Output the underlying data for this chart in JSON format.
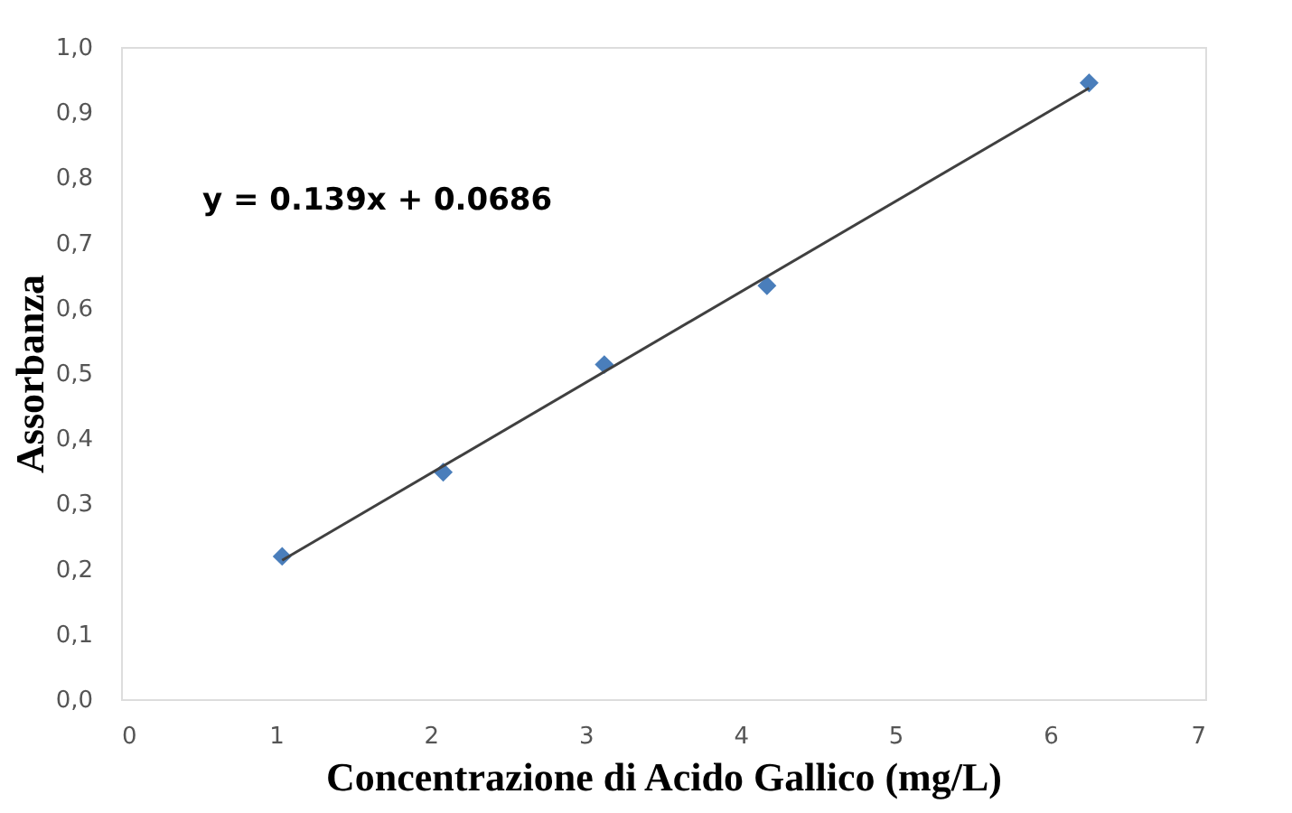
{
  "chart_data": {
    "type": "scatter",
    "xlabel": "Concentrazione di Acido Gallico (mg/L)",
    "ylabel": "Assorbanza",
    "annotations": [
      "y = 0.139x + 0.0686"
    ],
    "series": [
      {
        "color": "#4a7ebb",
        "marker": "diamond",
        "x": [
          1.04,
          2.08,
          3.12,
          4.17,
          6.25
        ],
        "values": [
          0.219,
          0.348,
          0.513,
          0.634,
          0.945
        ]
      },
      {
        "type": "line",
        "color": "#404040",
        "line_style": "solid",
        "x": [
          1.04,
          6.25
        ],
        "values": [
          0.213,
          0.937
        ]
      }
    ],
    "xlim": [
      0,
      7
    ],
    "xticks": [
      0,
      1,
      2,
      3,
      4,
      5,
      6,
      7
    ],
    "ylim": [
      0,
      1
    ],
    "yticks": [
      {
        "value": 0,
        "label": "0,0"
      },
      {
        "value": 0.1,
        "label": "0,1"
      },
      {
        "value": 0.2,
        "label": "0,2"
      },
      {
        "value": 0.3,
        "label": "0,3"
      },
      {
        "value": 0.4,
        "label": "0,4"
      },
      {
        "value": 0.5,
        "label": "0,5"
      },
      {
        "value": 0.6,
        "label": "0,6"
      },
      {
        "value": 0.7,
        "label": "0,7"
      },
      {
        "value": 0.8,
        "label": "0,8"
      },
      {
        "value": 0.9,
        "label": "0,9"
      },
      {
        "value": 1,
        "label": "1,0"
      }
    ],
    "grid": false
  }
}
